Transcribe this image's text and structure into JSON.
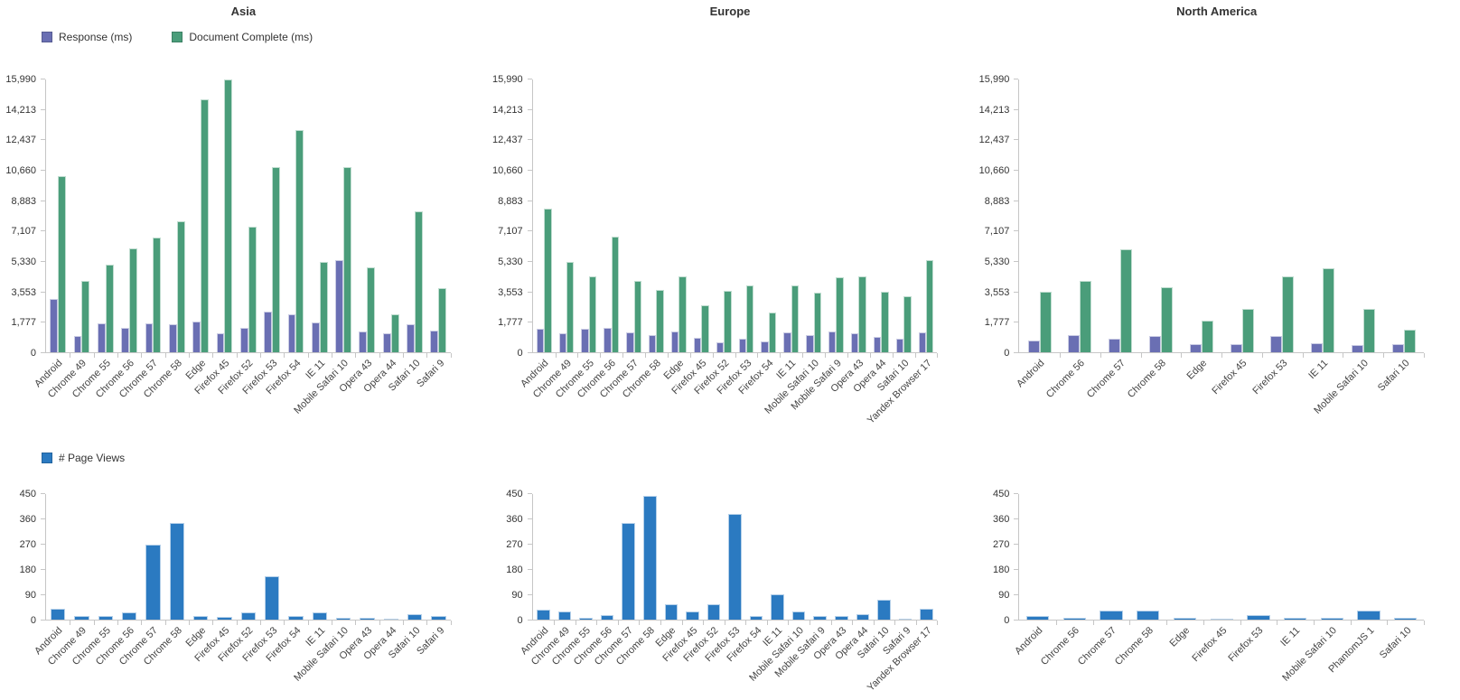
{
  "regions": [
    "Asia",
    "Europe",
    "North America"
  ],
  "colors": {
    "response": "#6a6fb3",
    "document_complete": "#4a9d7a",
    "page_views": "#2b7ac1",
    "axis": "#c6c6c6",
    "text": "#333333"
  },
  "chart_data": [
    {
      "type": "bar",
      "title": "Asia",
      "group": "performance",
      "show_legend": true,
      "legend_position": "top-left",
      "grid": false,
      "ylim": [
        0,
        15990
      ],
      "yticks": [
        0,
        1777,
        3553,
        5330,
        7107,
        8883,
        10660,
        12437,
        14213,
        15990
      ],
      "ytick_labels": [
        "0",
        "1,777",
        "3,553",
        "5,330",
        "7,107",
        "8,883",
        "10,660",
        "12,437",
        "14,213",
        "15,990"
      ],
      "categories": [
        "Android",
        "Chrome 49",
        "Chrome 55",
        "Chrome 56",
        "Chrome 57",
        "Chrome 58",
        "Edge",
        "Firefox 45",
        "Firefox 52",
        "Firefox 53",
        "Firefox 54",
        "IE 11",
        "Mobile Safari 10",
        "Opera 43",
        "Opera 44",
        "Safari 10",
        "Safari 9"
      ],
      "series": [
        {
          "name": "Response (ms)",
          "color": "#6a6fb3",
          "values": [
            3100,
            930,
            1700,
            1450,
            1700,
            1620,
            1780,
            1100,
            1450,
            2380,
            2210,
            1730,
            5390,
            1230,
            1100,
            1620,
            1280
          ]
        },
        {
          "name": "Document Complete (ms)",
          "color": "#4a9d7a",
          "values": [
            10320,
            4200,
            5130,
            6070,
            6750,
            7680,
            14820,
            15990,
            7340,
            10880,
            13040,
            5300,
            10880,
            4980,
            2210,
            8280,
            3740
          ]
        }
      ]
    },
    {
      "type": "bar",
      "title": "Europe",
      "group": "performance",
      "show_legend": false,
      "grid": false,
      "ylim": [
        0,
        15990
      ],
      "yticks": [
        0,
        1777,
        3553,
        5330,
        7107,
        8883,
        10660,
        12437,
        14213,
        15990
      ],
      "ytick_labels": [
        "0",
        "1,777",
        "3,553",
        "5,330",
        "7,107",
        "8,883",
        "10,660",
        "12,437",
        "14,213",
        "15,990"
      ],
      "categories": [
        "Android",
        "Chrome 49",
        "Chrome 55",
        "Chrome 56",
        "Chrome 57",
        "Chrome 58",
        "Edge",
        "Firefox 45",
        "Firefox 52",
        "Firefox 53",
        "Firefox 54",
        "IE 11",
        "Mobile Safari 10",
        "Mobile Safari 9",
        "Opera 43",
        "Opera 44",
        "Safari 10",
        "Yandex Browser 17"
      ],
      "series": [
        {
          "name": "Response (ms)",
          "color": "#6a6fb3",
          "values": [
            1360,
            1090,
            1360,
            1440,
            1180,
            1000,
            1230,
            830,
            580,
            790,
            620,
            1140,
            1000,
            1200,
            1090,
            880,
            790,
            1140
          ]
        },
        {
          "name": "Document Complete (ms)",
          "color": "#4a9d7a",
          "values": [
            8400,
            5280,
            4440,
            6760,
            4170,
            3640,
            4440,
            2730,
            3610,
            3900,
            2320,
            3930,
            3490,
            4400,
            4450,
            3560,
            3260,
            5400
          ]
        }
      ]
    },
    {
      "type": "bar",
      "title": "North America",
      "group": "performance",
      "show_legend": false,
      "grid": false,
      "ylim": [
        0,
        15990
      ],
      "yticks": [
        0,
        1777,
        3553,
        5330,
        7107,
        8883,
        10660,
        12437,
        14213,
        15990
      ],
      "ytick_labels": [
        "0",
        "1,777",
        "3,553",
        "5,330",
        "7,107",
        "8,883",
        "10,660",
        "12,437",
        "14,213",
        "15,990"
      ],
      "categories": [
        "Android",
        "Chrome 56",
        "Chrome 57",
        "Chrome 58",
        "Edge",
        "Firefox 45",
        "Firefox 53",
        "IE 11",
        "Mobile Safari 10",
        "Safari 10"
      ],
      "series": [
        {
          "name": "Response (ms)",
          "color": "#6a6fb3",
          "values": [
            700,
            1020,
            815,
            935,
            460,
            460,
            970,
            510,
            425,
            460
          ]
        },
        {
          "name": "Document Complete (ms)",
          "color": "#4a9d7a",
          "values": [
            3550,
            4200,
            6030,
            3800,
            1850,
            2550,
            4450,
            4950,
            2560,
            1300
          ]
        }
      ]
    },
    {
      "type": "bar",
      "title": "",
      "group": "page-views",
      "region": "Asia",
      "show_legend": true,
      "legend_position": "top-left",
      "grid": false,
      "ylim": [
        0,
        450
      ],
      "yticks": [
        0,
        90,
        180,
        270,
        360,
        450
      ],
      "ytick_labels": [
        "0",
        "90",
        "180",
        "270",
        "360",
        "450"
      ],
      "categories": [
        "Android",
        "Chrome 49",
        "Chrome 55",
        "Chrome 56",
        "Chrome 57",
        "Chrome 58",
        "Edge",
        "Firefox 45",
        "Firefox 52",
        "Firefox 53",
        "Firefox 54",
        "IE 11",
        "Mobile Safari 10",
        "Opera 43",
        "Opera 44",
        "Safari 10",
        "Safari 9"
      ],
      "series": [
        {
          "name": "# Page Views",
          "color": "#2b7ac1",
          "values": [
            40,
            13,
            13,
            25,
            270,
            345,
            13,
            10,
            27,
            155,
            13,
            27,
            6,
            6,
            3,
            18,
            12
          ]
        }
      ]
    },
    {
      "type": "bar",
      "title": "",
      "group": "page-views",
      "region": "Europe",
      "show_legend": false,
      "grid": false,
      "ylim": [
        0,
        450
      ],
      "yticks": [
        0,
        90,
        180,
        270,
        360,
        450
      ],
      "ytick_labels": [
        "0",
        "90",
        "180",
        "270",
        "360",
        "450"
      ],
      "categories": [
        "Android",
        "Chrome 49",
        "Chrome 55",
        "Chrome 56",
        "Chrome 57",
        "Chrome 58",
        "Edge",
        "Firefox 45",
        "Firefox 52",
        "Firefox 53",
        "Firefox 54",
        "IE 11",
        "Mobile Safari 10",
        "Mobile Safari 9",
        "Opera 43",
        "Opera 44",
        "Safari 10",
        "Safari 9",
        "Yandex Browser 17"
      ],
      "series": [
        {
          "name": "# Page Views",
          "color": "#2b7ac1",
          "values": [
            35,
            28,
            8,
            15,
            345,
            445,
            55,
            28,
            55,
            380,
            12,
            92,
            30,
            14,
            14,
            19,
            72,
            2,
            38
          ]
        }
      ]
    },
    {
      "type": "bar",
      "title": "",
      "group": "page-views",
      "region": "North America",
      "show_legend": false,
      "grid": false,
      "ylim": [
        0,
        450
      ],
      "yticks": [
        0,
        90,
        180,
        270,
        360,
        450
      ],
      "ytick_labels": [
        "0",
        "90",
        "180",
        "270",
        "360",
        "450"
      ],
      "categories": [
        "Android",
        "Chrome 56",
        "Chrome 57",
        "Chrome 58",
        "Edge",
        "Firefox 45",
        "Firefox 53",
        "IE 11",
        "Mobile Safari 10",
        "PhantomJS 1",
        "Safari 10"
      ],
      "series": [
        {
          "name": "# Page Views",
          "color": "#2b7ac1",
          "values": [
            13,
            8,
            34,
            34,
            8,
            2,
            16,
            8,
            8,
            34,
            8
          ]
        }
      ]
    }
  ]
}
